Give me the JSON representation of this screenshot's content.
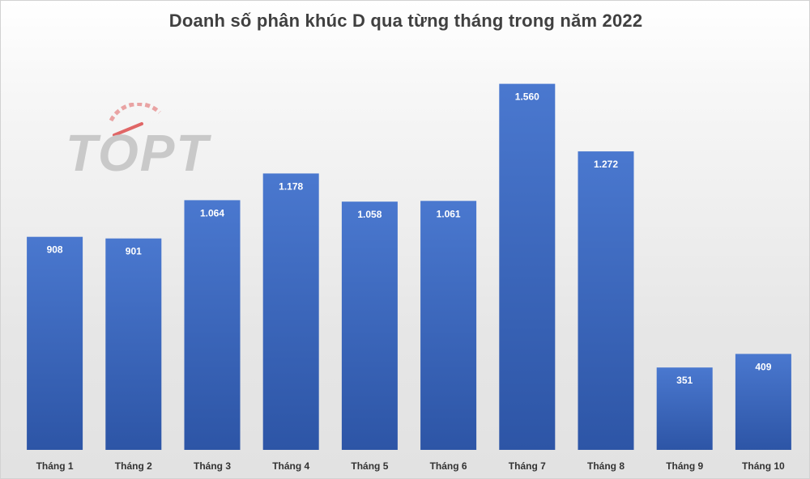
{
  "logo": {
    "text": "TOPT",
    "icon": "speedometer-logo"
  },
  "chart_data": {
    "type": "bar",
    "title": "Doanh số phân khúc D qua từng tháng trong năm 2022",
    "categories": [
      "Tháng 1",
      "Tháng 2",
      "Tháng 3",
      "Tháng 4",
      "Tháng 5",
      "Tháng 6",
      "Tháng 7",
      "Tháng 8",
      "Tháng 9",
      "Tháng 10"
    ],
    "values": [
      908,
      901,
      1064,
      1178,
      1058,
      1061,
      1560,
      1272,
      351,
      409
    ],
    "value_labels": [
      "908",
      "901",
      "1.064",
      "1.178",
      "1.058",
      "1.061",
      "1.560",
      "1.272",
      "351",
      "409"
    ],
    "xlabel": "",
    "ylabel": "",
    "ylim": [
      0,
      1700
    ],
    "grid": false,
    "legend": "none",
    "colors": {
      "bar_top": "#4a78cf",
      "bar_bottom": "#2d55a6",
      "label": "#ffffff",
      "axis_text": "#333333",
      "logo_gray": "#c9c9c9",
      "logo_red": "#e06666"
    }
  }
}
